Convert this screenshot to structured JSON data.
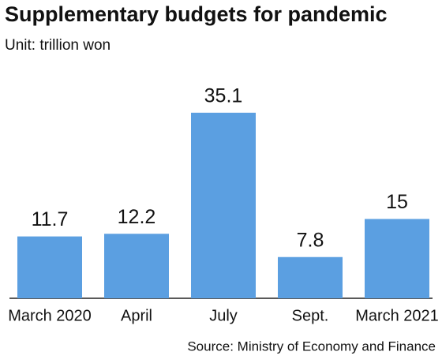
{
  "chart_data": {
    "type": "bar",
    "title": "Supplementary budgets for pandemic",
    "subtitle": "Unit:  trillion won",
    "categories": [
      "March 2020",
      "April",
      "July",
      "Sept.",
      "March 2021"
    ],
    "values": [
      11.7,
      12.2,
      35.1,
      7.8,
      15
    ],
    "color": "#5b9fe1",
    "source": "Source: Ministry of Economy and Finance"
  }
}
